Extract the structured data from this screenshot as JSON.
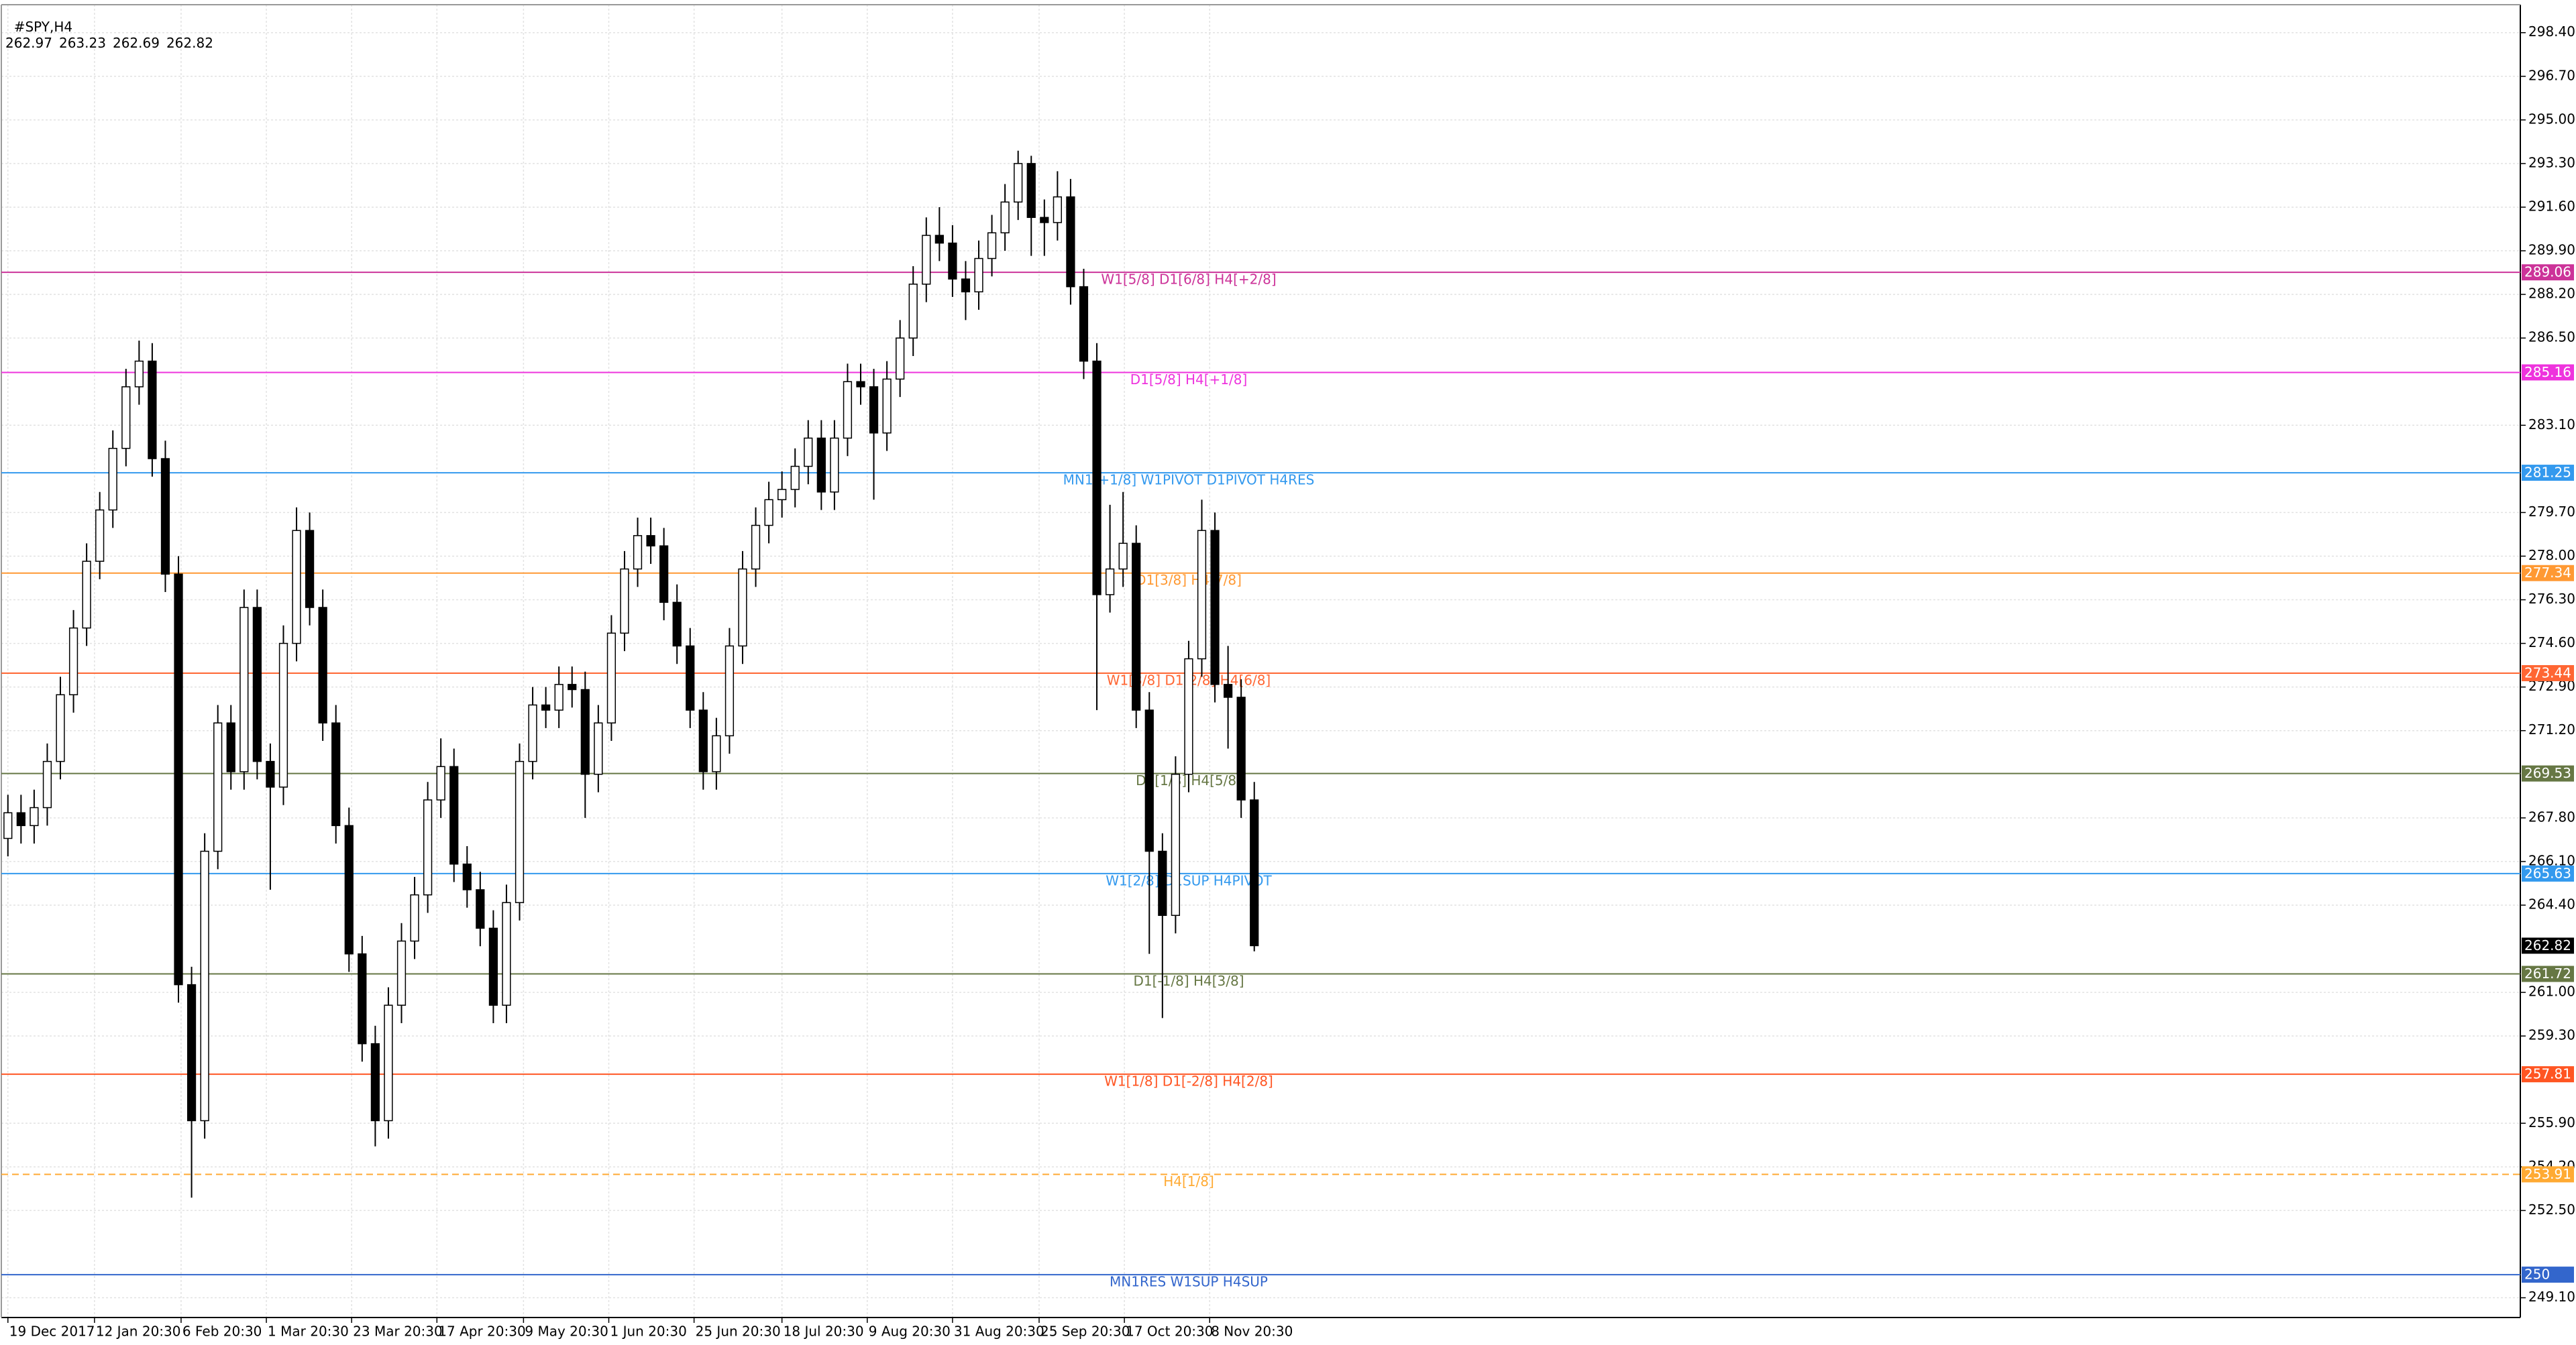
{
  "chart_data": {
    "type": "candlestick",
    "title": "#SPY,H4",
    "header_values": [
      262.97,
      263.23,
      262.69,
      262.82
    ],
    "open": [
      267.0,
      268.0,
      267.5,
      268.2,
      270.0,
      272.6,
      275.2,
      277.8,
      279.8,
      282.2,
      284.6,
      285.6,
      281.8,
      277.3,
      261.3,
      256.0,
      266.5,
      271.5,
      269.6,
      276.0,
      270.0,
      269.0,
      274.6,
      279.0,
      276.0,
      271.5,
      267.5,
      262.5,
      259.0,
      256.0,
      260.5,
      263.0,
      264.8,
      268.5,
      269.8,
      266.0,
      265.0,
      263.5,
      260.5,
      264.5,
      270.0,
      272.2,
      272.0,
      273.0,
      272.8,
      269.5,
      271.5,
      275.0,
      277.5,
      278.8,
      278.4,
      276.2,
      274.5,
      272.0,
      269.6,
      271.0,
      274.5,
      277.5,
      279.2,
      280.2,
      280.6,
      281.5,
      282.6,
      280.5,
      282.6,
      284.8,
      284.6,
      282.8,
      284.9,
      286.5,
      288.6,
      290.5,
      290.2,
      288.8,
      288.3,
      289.6,
      290.6,
      291.8,
      293.3,
      291.2,
      291.0,
      292.0,
      288.5,
      285.6,
      276.5,
      277.5,
      278.5,
      272.0,
      266.5,
      264.0,
      269.5,
      274.0,
      279.0,
      273.0,
      272.5,
      268.5
    ],
    "high": [
      268.7,
      268.7,
      268.9,
      270.7,
      273.3,
      275.9,
      278.5,
      280.5,
      282.9,
      285.3,
      286.4,
      286.3,
      282.5,
      278.0,
      262.0,
      267.2,
      272.2,
      272.2,
      276.7,
      276.7,
      270.7,
      275.3,
      279.9,
      279.7,
      276.7,
      272.2,
      268.2,
      263.2,
      259.7,
      261.2,
      263.7,
      265.5,
      269.2,
      270.9,
      270.5,
      266.7,
      265.7,
      264.2,
      265.2,
      270.7,
      272.9,
      272.9,
      273.7,
      273.7,
      273.5,
      272.2,
      275.7,
      278.2,
      279.5,
      279.5,
      279.1,
      276.9,
      275.2,
      272.7,
      271.7,
      275.2,
      278.2,
      279.9,
      280.9,
      281.3,
      282.2,
      283.3,
      283.3,
      283.3,
      285.5,
      285.5,
      285.3,
      285.6,
      287.2,
      289.3,
      291.2,
      291.6,
      290.9,
      289.5,
      290.3,
      291.3,
      292.5,
      293.8,
      293.6,
      291.9,
      293.0,
      292.7,
      289.2,
      286.3,
      280.0,
      280.5,
      279.2,
      272.7,
      267.2,
      270.2,
      274.7,
      280.2,
      279.7,
      274.5,
      273.2,
      269.2
    ],
    "low": [
      266.3,
      266.8,
      266.8,
      267.5,
      269.3,
      271.9,
      274.5,
      277.1,
      279.1,
      281.5,
      283.9,
      281.1,
      276.6,
      260.6,
      253.0,
      255.3,
      265.8,
      268.9,
      268.9,
      269.3,
      265.0,
      268.3,
      273.9,
      275.3,
      270.8,
      266.8,
      261.8,
      258.3,
      255.0,
      255.3,
      259.8,
      262.3,
      264.1,
      267.8,
      265.3,
      264.3,
      262.8,
      259.8,
      259.8,
      263.8,
      269.3,
      271.3,
      271.3,
      272.1,
      267.8,
      268.8,
      270.8,
      274.3,
      276.8,
      277.7,
      275.5,
      273.8,
      271.3,
      268.9,
      268.9,
      270.3,
      273.8,
      276.8,
      278.5,
      279.5,
      279.9,
      280.8,
      279.8,
      279.8,
      281.9,
      283.9,
      280.2,
      282.1,
      284.2,
      285.8,
      287.9,
      289.5,
      288.1,
      287.2,
      287.6,
      288.9,
      289.9,
      291.1,
      289.7,
      289.7,
      290.3,
      287.8,
      284.9,
      272.0,
      275.8,
      276.8,
      271.3,
      262.5,
      260.0,
      263.3,
      268.8,
      273.3,
      272.3,
      270.5,
      267.8,
      262.6
    ],
    "close": [
      268.0,
      267.5,
      268.2,
      270.0,
      272.6,
      275.2,
      277.8,
      279.8,
      282.2,
      284.6,
      285.6,
      281.8,
      277.3,
      261.3,
      256.0,
      266.5,
      271.5,
      269.6,
      276.0,
      270.0,
      269.0,
      274.6,
      279.0,
      276.0,
      271.5,
      267.5,
      262.5,
      259.0,
      256.0,
      260.5,
      263.0,
      264.8,
      268.5,
      269.8,
      266.0,
      265.0,
      263.5,
      260.5,
      264.5,
      270.0,
      272.2,
      272.0,
      273.0,
      272.8,
      269.5,
      271.5,
      275.0,
      277.5,
      278.8,
      278.4,
      276.2,
      274.5,
      272.0,
      269.6,
      271.0,
      274.5,
      277.5,
      279.2,
      280.2,
      280.6,
      281.5,
      282.6,
      280.5,
      282.6,
      284.8,
      284.6,
      282.8,
      284.9,
      286.5,
      288.6,
      290.5,
      290.2,
      288.8,
      288.3,
      289.6,
      290.6,
      291.8,
      293.3,
      291.2,
      291.0,
      292.0,
      288.5,
      285.6,
      276.5,
      277.5,
      278.5,
      272.0,
      266.5,
      264.0,
      269.5,
      274.0,
      279.0,
      273.0,
      272.5,
      268.5,
      262.82
    ],
    "up_color": "#ffffff",
    "down_color": "#000000",
    "xlim": [
      -0.5,
      191.5
    ],
    "xticks": [
      {
        "value": 0,
        "label": "19 Dec 2017"
      },
      {
        "value": 6.6,
        "label": "12 Jan 20:30"
      },
      {
        "value": 13.2,
        "label": "6 Feb 20:30"
      },
      {
        "value": 19.7,
        "label": "1 Mar 20:30"
      },
      {
        "value": 26.2,
        "label": "23 Mar 20:30"
      },
      {
        "value": 32.7,
        "label": "17 Apr 20:30"
      },
      {
        "value": 39.3,
        "label": "9 May 20:30"
      },
      {
        "value": 45.8,
        "label": "1 Jun 20:30"
      },
      {
        "value": 52.3,
        "label": "25 Jun 20:30"
      },
      {
        "value": 59,
        "label": "18 Jul 20:30"
      },
      {
        "value": 65.5,
        "label": "9 Aug 20:30"
      },
      {
        "value": 72,
        "label": "31 Aug 20:30"
      },
      {
        "value": 78.6,
        "label": "25 Sep 20:30"
      },
      {
        "value": 85.1,
        "label": "17 Oct 20:30"
      },
      {
        "value": 91.6,
        "label": "8 Nov 20:30"
      }
    ],
    "ylim": [
      248.33,
      299.49
    ],
    "yticks": [
      {
        "value": 298.4,
        "label": "298.40"
      },
      {
        "value": 296.7,
        "label": "296.70"
      },
      {
        "value": 295,
        "label": "295.00"
      },
      {
        "value": 293.3,
        "label": "293.30"
      },
      {
        "value": 291.6,
        "label": "291.60"
      },
      {
        "value": 289.9,
        "label": "289.90"
      },
      {
        "value": 288.2,
        "label": "288.20"
      },
      {
        "value": 286.5,
        "label": "286.50"
      },
      {
        "value": 283.1,
        "label": "283.10"
      },
      {
        "value": 279.7,
        "label": "279.70"
      },
      {
        "value": 278,
        "label": "278.00"
      },
      {
        "value": 276.3,
        "label": "276.30"
      },
      {
        "value": 274.6,
        "label": "274.60"
      },
      {
        "value": 272.9,
        "label": "272.90"
      },
      {
        "value": 271.2,
        "label": "271.20"
      },
      {
        "value": 267.8,
        "label": "267.80"
      },
      {
        "value": 266.1,
        "label": "266.10"
      },
      {
        "value": 264.4,
        "label": "264.40"
      },
      {
        "value": 261,
        "label": "261.00"
      },
      {
        "value": 259.3,
        "label": "259.30"
      },
      {
        "value": 255.9,
        "label": "255.90"
      },
      {
        "value": 254.2,
        "label": "254.20"
      },
      {
        "value": 252.5,
        "label": "252.50"
      },
      {
        "value": 249.1,
        "label": "249.10"
      }
    ],
    "grid": true,
    "levels": [
      {
        "value": 289.06,
        "label": "W1[5/8] D1[6/8] H4[+2/8]",
        "color": "#cc3399"
      },
      {
        "value": 285.16,
        "label": "D1[5/8] H4[+1/8]",
        "color": "#ee33dd"
      },
      {
        "value": 281.25,
        "label": "MN1[+1/8] W1PIVOT D1PIVOT H4RES",
        "color": "#3399ee"
      },
      {
        "value": 277.34,
        "label": "D1[3/8] H4[7/8]",
        "color": "#ff9933"
      },
      {
        "value": 273.44,
        "label": "W1[3/8] D1[2/8] H4[6/8]",
        "color": "#ff6633"
      },
      {
        "value": 269.53,
        "label": "D1[1/8] H4[5/8]",
        "color": "#667744"
      },
      {
        "value": 265.63,
        "label": "W1[2/8] D1SUP H4PIVOT",
        "color": "#3399ee"
      },
      {
        "value": 261.72,
        "label": "D1[-1/8] H4[3/8]",
        "color": "#667744"
      },
      {
        "value": 257.81,
        "label": "W1[1/8] D1[-2/8] H4[2/8]",
        "color": "#ff5522"
      },
      {
        "value": 253.91,
        "label": "H4[1/8]",
        "color": "#ffaa33",
        "dashed": true
      },
      {
        "value": 250,
        "label": "MN1RES W1SUP H4SUP",
        "color": "#3366cc"
      }
    ],
    "last_price": 262.82
  }
}
